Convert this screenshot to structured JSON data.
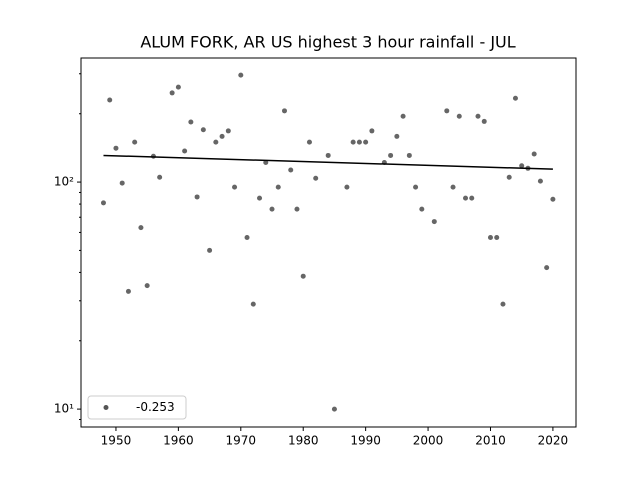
{
  "chart_data": {
    "type": "scatter",
    "title": "ALUM FORK, AR US highest 3 hour rainfall - JUL",
    "log_y": true,
    "xlim": [
      1944.4,
      2023.7
    ],
    "ylim": [
      8.34,
      352
    ],
    "xticks": [
      1950,
      1960,
      1970,
      1980,
      1990,
      2000,
      2010,
      2020
    ],
    "yticks": [
      {
        "value": 10,
        "label": "10¹"
      },
      {
        "value": 100,
        "label": "10²"
      }
    ],
    "yticks_minor": [
      9,
      20,
      30,
      40,
      50,
      60,
      70,
      80,
      90,
      200,
      300
    ],
    "legend": "lower left",
    "series": [
      {
        "name": "-0.253",
        "color": "#555555",
        "x": [
          1948,
          1949,
          1950,
          1951,
          1952,
          1953,
          1954,
          1955,
          1956,
          1957,
          1959,
          1960,
          1961,
          1962,
          1963,
          1964,
          1965,
          1966,
          1967,
          1968,
          1969,
          1970,
          1971,
          1972,
          1973,
          1974,
          1975,
          1976,
          1977,
          1978,
          1979,
          1980,
          1981,
          1982,
          1984,
          1985,
          1987,
          1988,
          1989,
          1990,
          1991,
          1993,
          1994,
          1995,
          1996,
          1997,
          1998,
          1999,
          2001,
          2003,
          2004,
          2005,
          2006,
          2007,
          2008,
          2009,
          2010,
          2011,
          2012,
          2013,
          2014,
          2015,
          2016,
          2017,
          2018,
          2019,
          2020
        ],
        "values": [
          81,
          230,
          141,
          99,
          33,
          150,
          63,
          35,
          130,
          105,
          247,
          262,
          137,
          184,
          86,
          170,
          50,
          150,
          159,
          168,
          95,
          296,
          57,
          29,
          85,
          122,
          76,
          95,
          206,
          113,
          76,
          38.5,
          150,
          104,
          131,
          10,
          95,
          150,
          150,
          150,
          168,
          122,
          131,
          159,
          195,
          131,
          95,
          76,
          67,
          206,
          95,
          195,
          85,
          85,
          195,
          185,
          57,
          57,
          29,
          105,
          234,
          118,
          115,
          133,
          101,
          42,
          84
        ]
      }
    ],
    "trend": {
      "x": [
        1948,
        2020
      ],
      "values": [
        131,
        114
      ],
      "color": "#000000"
    }
  }
}
